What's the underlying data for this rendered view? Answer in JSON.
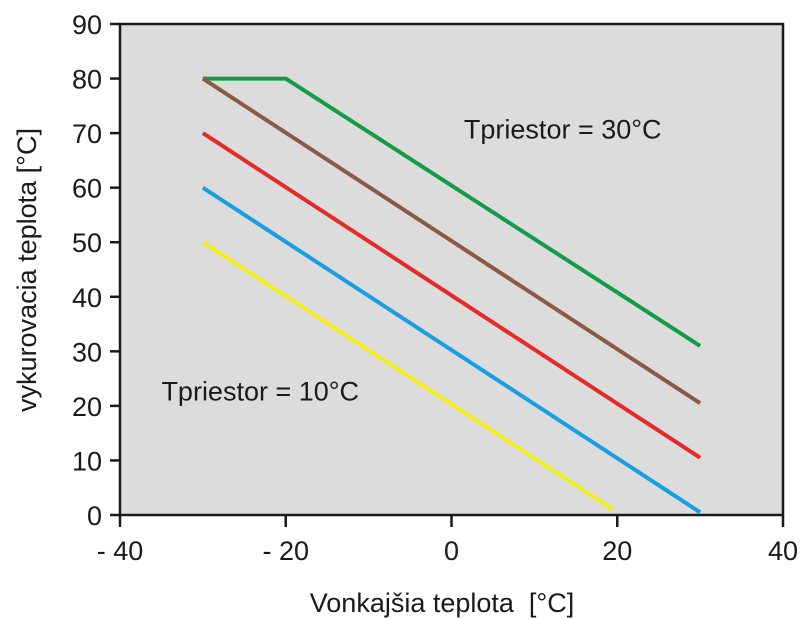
{
  "chart_data": {
    "type": "line",
    "title": "",
    "xlabel": "Vonkajšia teplota  [°C]",
    "ylabel": "vykurovacia teplota [°C]",
    "xlim": [
      -40,
      40
    ],
    "ylim": [
      0,
      90
    ],
    "x_ticks": [
      -40,
      -20,
      0,
      20,
      40
    ],
    "x_tick_labels": [
      "- 40",
      "- 20",
      "0",
      "20",
      "40"
    ],
    "y_ticks": [
      0,
      10,
      20,
      30,
      40,
      50,
      60,
      70,
      80,
      90
    ],
    "y_tick_labels": [
      "0",
      "10",
      "20",
      "30",
      "40",
      "50",
      "60",
      "70",
      "80",
      "90"
    ],
    "grid": false,
    "plot_background": "#dcdcdc",
    "series": [
      {
        "color": "#159a48",
        "x": [
          -30,
          -20,
          30
        ],
        "y": [
          80,
          80,
          31
        ]
      },
      {
        "color": "#8b5a47",
        "x": [
          -30,
          30
        ],
        "y": [
          80,
          20.5
        ]
      },
      {
        "color": "#e32b2b",
        "x": [
          -30,
          30
        ],
        "y": [
          70,
          10.5
        ]
      },
      {
        "color": "#1a9ee0",
        "x": [
          -30,
          30
        ],
        "y": [
          60,
          0.5
        ]
      },
      {
        "color": "#f3ee1f",
        "x": [
          -30,
          19.5
        ],
        "y": [
          50,
          1
        ]
      }
    ],
    "annotations": [
      {
        "text": "Tpriestor = 30°C",
        "x": 1.5,
        "y": 69
      },
      {
        "text": "Tpriestor = 10°C",
        "x": -35,
        "y": 21
      }
    ]
  }
}
